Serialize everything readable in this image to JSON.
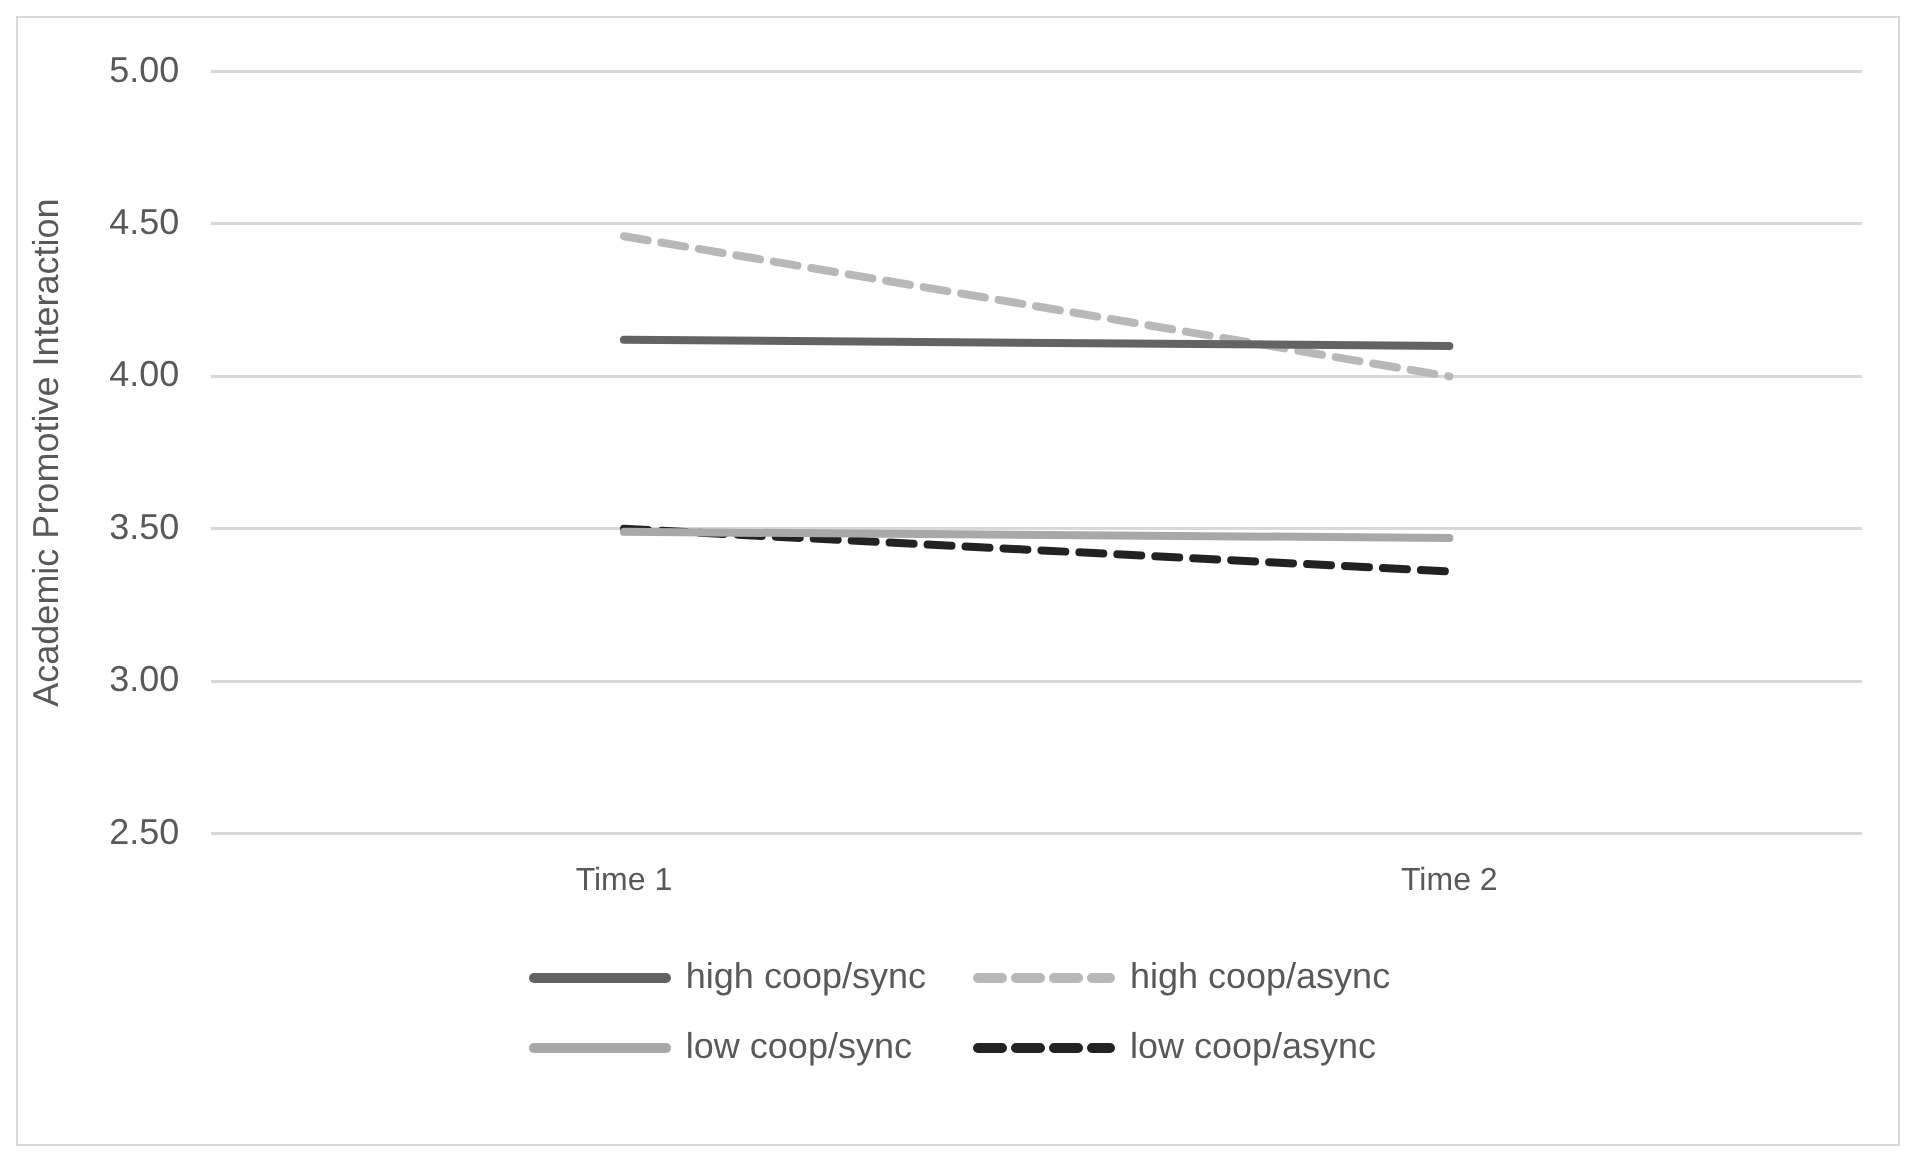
{
  "chart_data": {
    "type": "line",
    "ylabel": "Academic Promotive Interaction",
    "categories": [
      "Time 1",
      "Time 2"
    ],
    "series": [
      {
        "name": "high coop/sync",
        "color": "#636363",
        "values": [
          4.12,
          4.1
        ],
        "line_style": "solid"
      },
      {
        "name": "high coop/async",
        "color": "#b8b8b8",
        "values": [
          4.46,
          4.0
        ],
        "line_style": "dashed"
      },
      {
        "name": "low coop/sync",
        "color": "#a8a8a8",
        "values": [
          3.49,
          3.47
        ],
        "line_style": "solid"
      },
      {
        "name": "low coop/async",
        "color": "#222222",
        "values": [
          3.5,
          3.36
        ],
        "line_style": "dashed"
      }
    ],
    "ylim": [
      2.5,
      5
    ],
    "yticks": [
      {
        "value": 2.5,
        "label": "2.50"
      },
      {
        "value": 3,
        "label": "3.00"
      },
      {
        "value": 3.5,
        "label": "3.50"
      },
      {
        "value": 4,
        "label": "4.00"
      },
      {
        "value": 4.5,
        "label": "4.50"
      },
      {
        "value": 5,
        "label": "5.00"
      }
    ],
    "grid": "y",
    "legend": "bottom",
    "marker": "none"
  }
}
